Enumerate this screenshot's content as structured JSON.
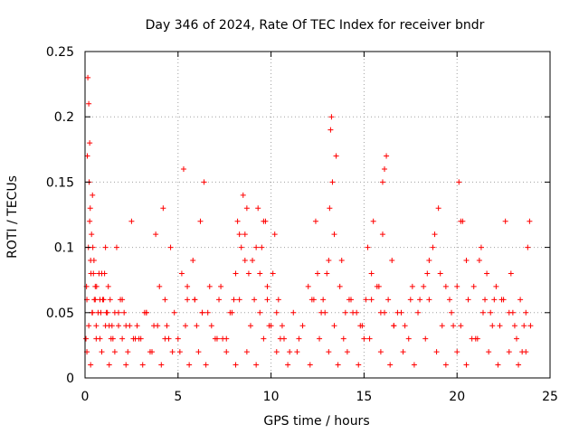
{
  "chart_data": {
    "type": "scatter",
    "title": "Day 346 of 2024, Rate Of TEC Index for receiver bndr",
    "xlabel": "GPS time / hours",
    "ylabel": "ROTI / TECUs",
    "xlim": [
      0,
      25
    ],
    "ylim": [
      0,
      0.25
    ],
    "grid": true,
    "marker": "+",
    "colors": {
      "series": "#ff0000",
      "grid": "#a0a0a0"
    },
    "x_ticks": [
      {
        "value": 0,
        "label": "0"
      },
      {
        "value": 5,
        "label": "5"
      },
      {
        "value": 10,
        "label": "10"
      },
      {
        "value": 15,
        "label": "15"
      },
      {
        "value": 20,
        "label": "20"
      },
      {
        "value": 25,
        "label": "25"
      }
    ],
    "y_ticks": [
      {
        "value": 0,
        "label": "0"
      },
      {
        "value": 0.05,
        "label": "0.05"
      },
      {
        "value": 0.1,
        "label": "0.1"
      },
      {
        "value": 0.15,
        "label": "0.15"
      },
      {
        "value": 0.2,
        "label": "0.2"
      },
      {
        "value": 0.25,
        "label": "0.25"
      }
    ],
    "series": [
      {
        "x": [
          0.05,
          0.1,
          0.12,
          0.15,
          0.2,
          0.22,
          0.25,
          0.28,
          0.3,
          0.35,
          0.4,
          0.45,
          0.5,
          0.55,
          0.6,
          0.7,
          0.8,
          0.9,
          1.0,
          1.1,
          1.2,
          1.3,
          1.5,
          1.7,
          1.9,
          2.0,
          2.1,
          2.3,
          2.5,
          2.8,
          3.0,
          3.3,
          3.6,
          3.8,
          4.0,
          4.2,
          4.4,
          4.7,
          5.0,
          5.3,
          5.5,
          5.8,
          6.0,
          6.2,
          6.4,
          6.6,
          7.0,
          7.3,
          7.6,
          8.0,
          8.2,
          8.4,
          8.5,
          8.6,
          8.8,
          9.0,
          9.3,
          9.5,
          9.7,
          9.8,
          10.0,
          10.2,
          10.4,
          10.7,
          11.0,
          11.5,
          12.0,
          12.4,
          12.7,
          13.0,
          13.2,
          13.3,
          13.5,
          13.8,
          14.2,
          14.6,
          15.0,
          15.2,
          15.5,
          15.8,
          16.0,
          16.2,
          16.5,
          16.8,
          17.2,
          17.6,
          18.0,
          18.4,
          18.7,
          19.0,
          19.4,
          19.8,
          20.1,
          20.3,
          20.6,
          21.0,
          21.3,
          21.6,
          22.0,
          22.3,
          22.6,
          22.9,
          23.2,
          23.5,
          23.8,
          23.9,
          0.1,
          0.3,
          0.6,
          0.9,
          1.3,
          1.6,
          2.2,
          2.6,
          3.1,
          3.5,
          4.1,
          4.5,
          5.1,
          5.6,
          6.1,
          6.5,
          7.1,
          7.6,
          8.1,
          8.7,
          9.2,
          9.6,
          10.3,
          10.9,
          11.4,
          12.1,
          12.6,
          13.1,
          13.6,
          14.1,
          14.7,
          15.3,
          15.9,
          16.4,
          17.1,
          17.7,
          18.3,
          18.9,
          19.4,
          20.0,
          20.5,
          21.1,
          21.7,
          22.2,
          22.8,
          23.3,
          23.7,
          0.2,
          0.4,
          0.8,
          1.1,
          1.4,
          1.8,
          2.4,
          2.9,
          3.3,
          3.9,
          4.3,
          4.8,
          5.4,
          5.9,
          6.3,
          6.8,
          7.4,
          7.9,
          8.3,
          8.9,
          9.4,
          9.9,
          10.5,
          11.2,
          11.7,
          12.3,
          12.9,
          13.4,
          13.9,
          14.4,
          14.9,
          15.4,
          16.1,
          16.6,
          17.4,
          17.9,
          18.5,
          19.2,
          19.7,
          20.2,
          20.8,
          21.4,
          21.9,
          22.4,
          23.0,
          23.6,
          0.08,
          0.18,
          0.25,
          0.32,
          0.38,
          0.42,
          0.48,
          0.55,
          0.62,
          0.75,
          0.85,
          0.95,
          1.05,
          1.15,
          1.25,
          1.35,
          1.45,
          1.6,
          1.8,
          2.0,
          2.2,
          2.7,
          3.2,
          3.7,
          4.3,
          4.6,
          5.2,
          5.5,
          5.9,
          6.3,
          6.7,
          7.2,
          7.8,
          8.1,
          8.3,
          8.6,
          8.7,
          9.1,
          9.2,
          9.4,
          9.6,
          9.8,
          10.1,
          10.3,
          10.6,
          12.2,
          12.5,
          12.8,
          13.1,
          13.15,
          13.25,
          13.4,
          13.7,
          14.0,
          14.3,
          14.8,
          15.1,
          15.4,
          15.7,
          15.9,
          16.0,
          16.1,
          16.3,
          16.6,
          17.0,
          17.5,
          18.2,
          18.5,
          18.8,
          19.1,
          19.6,
          20.0,
          20.2,
          20.5,
          20.9,
          21.2,
          21.5,
          21.8,
          22.1,
          22.5,
          22.8,
          23.1,
          23.4,
          23.7,
          23.95
        ],
        "y": [
          0.03,
          0.06,
          0.17,
          0.23,
          0.21,
          0.15,
          0.18,
          0.13,
          0.09,
          0.11,
          0.14,
          0.08,
          0.06,
          0.07,
          0.04,
          0.05,
          0.03,
          0.08,
          0.06,
          0.1,
          0.05,
          0.04,
          0.03,
          0.1,
          0.06,
          0.03,
          0.05,
          0.02,
          0.12,
          0.04,
          0.03,
          0.05,
          0.02,
          0.11,
          0.07,
          0.13,
          0.04,
          0.02,
          0.03,
          0.16,
          0.06,
          0.09,
          0.04,
          0.12,
          0.15,
          0.05,
          0.03,
          0.07,
          0.03,
          0.06,
          0.12,
          0.1,
          0.14,
          0.11,
          0.08,
          0.09,
          0.13,
          0.1,
          0.12,
          0.06,
          0.04,
          0.11,
          0.06,
          0.03,
          0.02,
          0.03,
          0.07,
          0.12,
          0.05,
          0.08,
          0.19,
          0.15,
          0.17,
          0.09,
          0.06,
          0.05,
          0.03,
          0.1,
          0.12,
          0.07,
          0.15,
          0.17,
          0.09,
          0.05,
          0.04,
          0.07,
          0.06,
          0.08,
          0.1,
          0.13,
          0.07,
          0.04,
          0.15,
          0.12,
          0.06,
          0.03,
          0.1,
          0.08,
          0.06,
          0.04,
          0.12,
          0.08,
          0.03,
          0.02,
          0.1,
          0.12,
          0.02,
          0.01,
          0.03,
          0.02,
          0.01,
          0.02,
          0.01,
          0.03,
          0.01,
          0.02,
          0.01,
          0.03,
          0.02,
          0.01,
          0.02,
          0.01,
          0.03,
          0.02,
          0.01,
          0.02,
          0.01,
          0.03,
          0.02,
          0.01,
          0.02,
          0.01,
          0.03,
          0.02,
          0.01,
          0.02,
          0.01,
          0.03,
          0.02,
          0.01,
          0.02,
          0.01,
          0.03,
          0.02,
          0.01,
          0.02,
          0.01,
          0.03,
          0.02,
          0.01,
          0.02,
          0.01,
          0.02,
          0.04,
          0.05,
          0.06,
          0.04,
          0.03,
          0.05,
          0.04,
          0.03,
          0.05,
          0.04,
          0.03,
          0.05,
          0.04,
          0.06,
          0.05,
          0.04,
          0.03,
          0.05,
          0.06,
          0.04,
          0.05,
          0.04,
          0.03,
          0.05,
          0.04,
          0.06,
          0.05,
          0.04,
          0.03,
          0.05,
          0.04,
          0.06,
          0.05,
          0.04,
          0.03,
          0.05,
          0.06,
          0.04,
          0.05,
          0.04,
          0.03,
          0.05,
          0.04,
          0.06,
          0.05,
          0.04,
          0.07,
          0.1,
          0.12,
          0.08,
          0.05,
          0.1,
          0.09,
          0.06,
          0.07,
          0.08,
          0.05,
          0.06,
          0.08,
          0.05,
          0.07,
          0.06,
          0.04,
          0.05,
          0.04,
          0.06,
          0.04,
          0.03,
          0.05,
          0.04,
          0.06,
          0.1,
          0.08,
          0.07,
          0.06,
          0.05,
          0.07,
          0.06,
          0.05,
          0.08,
          0.11,
          0.09,
          0.13,
          0.06,
          0.1,
          0.08,
          0.12,
          0.07,
          0.08,
          0.05,
          0.04,
          0.06,
          0.08,
          0.06,
          0.09,
          0.13,
          0.2,
          0.11,
          0.07,
          0.05,
          0.06,
          0.04,
          0.06,
          0.08,
          0.07,
          0.05,
          0.11,
          0.16,
          0.06,
          0.04,
          0.05,
          0.06,
          0.07,
          0.09,
          0.11,
          0.08,
          0.06,
          0.07,
          0.12,
          0.09,
          0.07,
          0.09,
          0.06,
          0.05,
          0.07,
          0.06,
          0.05,
          0.04,
          0.06,
          0.05,
          0.04
        ]
      }
    ]
  }
}
